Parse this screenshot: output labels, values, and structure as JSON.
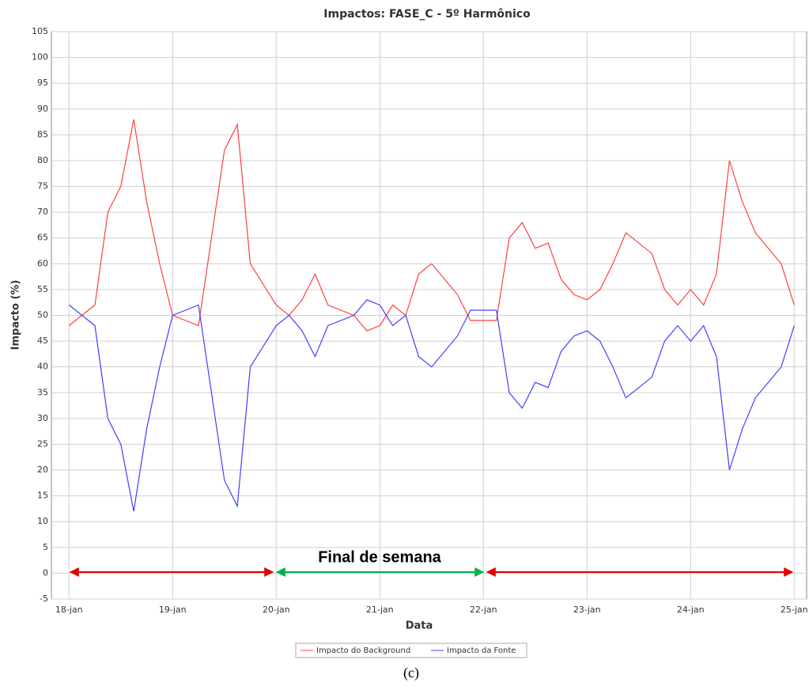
{
  "chart_data": {
    "type": "line",
    "title": "Impactos: FASE_C - 5º Harmônico",
    "x_label": "Data",
    "y_label": "Impacto (%)",
    "annotation": "Final de semana",
    "caption": "(c)",
    "xlim": [
      -0.17,
      7.12
    ],
    "xticks": [
      {
        "value": 0,
        "label": "18-jan"
      },
      {
        "value": 1,
        "label": "19-jan"
      },
      {
        "value": 2,
        "label": "20-jan"
      },
      {
        "value": 3,
        "label": "21-jan"
      },
      {
        "value": 4,
        "label": "22-jan"
      },
      {
        "value": 5,
        "label": "23-jan"
      },
      {
        "value": 6,
        "label": "24-jan"
      },
      {
        "value": 7,
        "label": "25-jan"
      }
    ],
    "ylim": [
      -5,
      105
    ],
    "yticks": [
      -5,
      0,
      5,
      10,
      15,
      20,
      25,
      30,
      35,
      40,
      45,
      50,
      55,
      60,
      65,
      70,
      75,
      80,
      85,
      90,
      95,
      100,
      105
    ],
    "grid": true,
    "legend": "bottom",
    "x": [
      0,
      0.125,
      0.25,
      0.375,
      0.5,
      0.625,
      0.75,
      0.875,
      1,
      1.125,
      1.25,
      1.375,
      1.5,
      1.625,
      1.75,
      1.875,
      2,
      2.125,
      2.25,
      2.375,
      2.5,
      2.625,
      2.75,
      2.875,
      3,
      3.125,
      3.25,
      3.375,
      3.5,
      3.625,
      3.75,
      3.875,
      4,
      4.125,
      4.25,
      4.375,
      4.5,
      4.625,
      4.75,
      4.875,
      5,
      5.125,
      5.25,
      5.375,
      5.5,
      5.625,
      5.75,
      5.875,
      6,
      6.125,
      6.25,
      6.375,
      6.5,
      6.625,
      6.75,
      6.875,
      7
    ],
    "series": [
      {
        "name": "Impacto do Background",
        "color": "#ff4040",
        "values": [
          48,
          50,
          52,
          70,
          75,
          88,
          72,
          60,
          50,
          49,
          48,
          65,
          82,
          87,
          60,
          56,
          52,
          50,
          53,
          58,
          52,
          51,
          50,
          47,
          48,
          52,
          50,
          58,
          60,
          57,
          54,
          49,
          49,
          49,
          65,
          68,
          63,
          64,
          57,
          54,
          53,
          55,
          60,
          66,
          64,
          62,
          55,
          52,
          55,
          52,
          58,
          80,
          72,
          66,
          63,
          60,
          52
        ]
      },
      {
        "name": "Impacto da Fonte",
        "color": "#4040ff",
        "values": [
          52,
          50,
          48,
          30,
          25,
          12,
          28,
          40,
          50,
          51,
          52,
          35,
          18,
          13,
          40,
          44,
          48,
          50,
          47,
          42,
          48,
          49,
          50,
          53,
          52,
          48,
          50,
          42,
          40,
          43,
          46,
          51,
          51,
          51,
          35,
          32,
          37,
          36,
          43,
          46,
          47,
          45,
          40,
          34,
          36,
          38,
          45,
          48,
          45,
          48,
          42,
          20,
          28,
          34,
          37,
          40,
          48
        ]
      }
    ]
  }
}
